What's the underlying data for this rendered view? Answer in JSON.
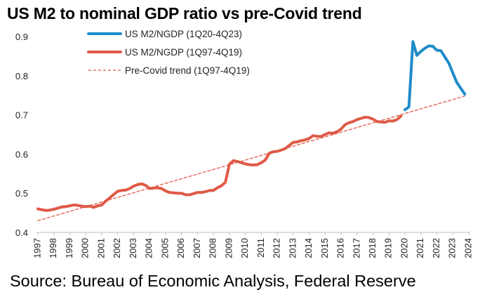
{
  "chart_data": {
    "type": "line",
    "title": "US M2 to nominal GDP ratio vs pre-Covid trend",
    "source": "Source: Bureau of Economic Analysis, Federal Reserve",
    "xlabel": "",
    "ylabel": "",
    "xlim": [
      1997,
      2024
    ],
    "ylim": [
      0.4,
      0.9
    ],
    "yticks": [
      "0.4",
      "0.5",
      "0.6",
      "0.7",
      "0.8",
      "0.9"
    ],
    "xticks": [
      "1997",
      "1998",
      "1999",
      "2000",
      "2001",
      "2002",
      "2003",
      "2004",
      "2005",
      "2006",
      "2007",
      "2008",
      "2009",
      "2010",
      "2011",
      "2012",
      "2013",
      "2014",
      "2015",
      "2016",
      "2017",
      "2018",
      "2019",
      "2020",
      "2021",
      "2022",
      "2023",
      "2024"
    ],
    "grid": false,
    "legend_position": "top-left",
    "series": [
      {
        "name": "US M2/NGDP (1Q20-4Q23)",
        "color": "#1f8cc9",
        "style": "solid-thick",
        "points": [
          [
            2020.0,
            0.713
          ],
          [
            2020.25,
            0.72
          ],
          [
            2020.5,
            0.887
          ],
          [
            2020.75,
            0.852
          ],
          [
            2021.0,
            0.862
          ],
          [
            2021.25,
            0.87
          ],
          [
            2021.5,
            0.876
          ],
          [
            2021.75,
            0.875
          ],
          [
            2022.0,
            0.865
          ],
          [
            2022.25,
            0.864
          ],
          [
            2022.5,
            0.848
          ],
          [
            2022.75,
            0.832
          ],
          [
            2023.0,
            0.807
          ],
          [
            2023.25,
            0.783
          ],
          [
            2023.5,
            0.768
          ],
          [
            2023.75,
            0.753
          ]
        ]
      },
      {
        "name": "US M2/NGDP (1Q97-4Q19)",
        "color": "#e05a47",
        "style": "solid-thick",
        "points": [
          [
            1997.0,
            0.46
          ],
          [
            1997.25,
            0.458
          ],
          [
            1997.5,
            0.456
          ],
          [
            1997.75,
            0.457
          ],
          [
            1998.0,
            0.459
          ],
          [
            1998.25,
            0.462
          ],
          [
            1998.5,
            0.465
          ],
          [
            1998.75,
            0.466
          ],
          [
            1999.0,
            0.468
          ],
          [
            1999.25,
            0.47
          ],
          [
            1999.5,
            0.469
          ],
          [
            1999.75,
            0.467
          ],
          [
            2000.0,
            0.466
          ],
          [
            2000.25,
            0.467
          ],
          [
            2000.5,
            0.464
          ],
          [
            2000.75,
            0.468
          ],
          [
            2001.0,
            0.47
          ],
          [
            2001.25,
            0.48
          ],
          [
            2001.5,
            0.488
          ],
          [
            2001.75,
            0.497
          ],
          [
            2002.0,
            0.505
          ],
          [
            2002.25,
            0.507
          ],
          [
            2002.5,
            0.508
          ],
          [
            2002.75,
            0.512
          ],
          [
            2003.0,
            0.518
          ],
          [
            2003.25,
            0.522
          ],
          [
            2003.5,
            0.524
          ],
          [
            2003.75,
            0.52
          ],
          [
            2004.0,
            0.512
          ],
          [
            2004.25,
            0.513
          ],
          [
            2004.5,
            0.514
          ],
          [
            2004.75,
            0.512
          ],
          [
            2005.0,
            0.506
          ],
          [
            2005.25,
            0.502
          ],
          [
            2005.5,
            0.501
          ],
          [
            2005.75,
            0.5
          ],
          [
            2006.0,
            0.5
          ],
          [
            2006.25,
            0.496
          ],
          [
            2006.5,
            0.496
          ],
          [
            2006.75,
            0.499
          ],
          [
            2007.0,
            0.502
          ],
          [
            2007.25,
            0.502
          ],
          [
            2007.5,
            0.504
          ],
          [
            2007.75,
            0.507
          ],
          [
            2008.0,
            0.507
          ],
          [
            2008.25,
            0.514
          ],
          [
            2008.5,
            0.519
          ],
          [
            2008.75,
            0.528
          ],
          [
            2009.0,
            0.574
          ],
          [
            2009.25,
            0.583
          ],
          [
            2009.5,
            0.581
          ],
          [
            2009.75,
            0.578
          ],
          [
            2010.0,
            0.575
          ],
          [
            2010.25,
            0.573
          ],
          [
            2010.5,
            0.572
          ],
          [
            2010.75,
            0.573
          ],
          [
            2011.0,
            0.578
          ],
          [
            2011.25,
            0.585
          ],
          [
            2011.5,
            0.602
          ],
          [
            2011.75,
            0.606
          ],
          [
            2012.0,
            0.607
          ],
          [
            2012.25,
            0.61
          ],
          [
            2012.5,
            0.614
          ],
          [
            2012.75,
            0.622
          ],
          [
            2013.0,
            0.63
          ],
          [
            2013.25,
            0.631
          ],
          [
            2013.5,
            0.634
          ],
          [
            2013.75,
            0.636
          ],
          [
            2014.0,
            0.64
          ],
          [
            2014.25,
            0.647
          ],
          [
            2014.5,
            0.645
          ],
          [
            2014.75,
            0.645
          ],
          [
            2015.0,
            0.65
          ],
          [
            2015.25,
            0.654
          ],
          [
            2015.5,
            0.653
          ],
          [
            2015.75,
            0.657
          ],
          [
            2016.0,
            0.664
          ],
          [
            2016.25,
            0.675
          ],
          [
            2016.5,
            0.68
          ],
          [
            2016.75,
            0.683
          ],
          [
            2017.0,
            0.688
          ],
          [
            2017.25,
            0.691
          ],
          [
            2017.5,
            0.694
          ],
          [
            2017.75,
            0.693
          ],
          [
            2018.0,
            0.689
          ],
          [
            2018.25,
            0.683
          ],
          [
            2018.5,
            0.682
          ],
          [
            2018.75,
            0.681
          ],
          [
            2019.0,
            0.685
          ],
          [
            2019.25,
            0.684
          ],
          [
            2019.5,
            0.688
          ],
          [
            2019.75,
            0.697
          ]
        ]
      },
      {
        "name": "Pre-Covid trend (1Q97-4Q19)",
        "color": "#e05a47",
        "style": "dashed",
        "points": [
          [
            1997.0,
            0.43
          ],
          [
            2023.75,
            0.748
          ]
        ]
      }
    ]
  }
}
